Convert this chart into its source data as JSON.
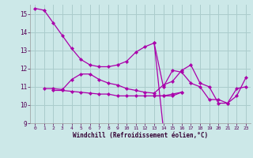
{
  "xlabel": "Windchill (Refroidissement éolien,°C)",
  "background_color": "#cce8e8",
  "grid_color": "#aacccc",
  "line_color": "#aa00aa",
  "xlim": [
    -0.5,
    23.5
  ],
  "ylim": [
    9,
    15.5
  ],
  "yticks": [
    9,
    10,
    11,
    12,
    13,
    14,
    15
  ],
  "xticks": [
    0,
    1,
    2,
    3,
    4,
    5,
    6,
    7,
    8,
    9,
    10,
    11,
    12,
    13,
    14,
    15,
    16,
    17,
    18,
    19,
    20,
    21,
    22,
    23
  ],
  "series": [
    [
      15.3,
      15.2,
      14.5,
      13.8,
      13.1,
      12.5,
      12.2,
      12.1,
      12.1,
      12.2,
      12.4,
      12.9,
      13.2,
      13.4,
      8.7,
      null,
      null,
      null,
      null,
      null,
      null,
      null,
      null,
      null
    ],
    [
      null,
      null,
      null,
      null,
      null,
      null,
      null,
      null,
      null,
      null,
      null,
      null,
      null,
      13.4,
      11.0,
      11.9,
      11.8,
      11.2,
      11.0,
      10.3,
      10.3,
      10.1,
      10.5,
      11.5
    ],
    [
      null,
      10.9,
      10.9,
      10.85,
      11.4,
      11.7,
      11.7,
      11.4,
      11.2,
      11.1,
      10.9,
      10.8,
      10.7,
      10.65,
      11.1,
      11.3,
      11.9,
      12.2,
      11.2,
      11.0,
      10.1,
      10.1,
      10.9,
      11.0
    ],
    [
      null,
      null,
      10.8,
      10.8,
      10.75,
      10.7,
      10.65,
      10.6,
      10.6,
      10.5,
      10.5,
      10.5,
      10.5,
      10.5,
      10.5,
      10.6,
      10.7,
      null,
      null,
      null,
      null,
      null,
      null,
      null
    ],
    [
      null,
      null,
      null,
      null,
      null,
      null,
      null,
      null,
      null,
      null,
      null,
      null,
      null,
      10.5,
      10.5,
      10.5,
      10.7,
      null,
      null,
      null,
      null,
      null,
      null,
      null
    ]
  ]
}
